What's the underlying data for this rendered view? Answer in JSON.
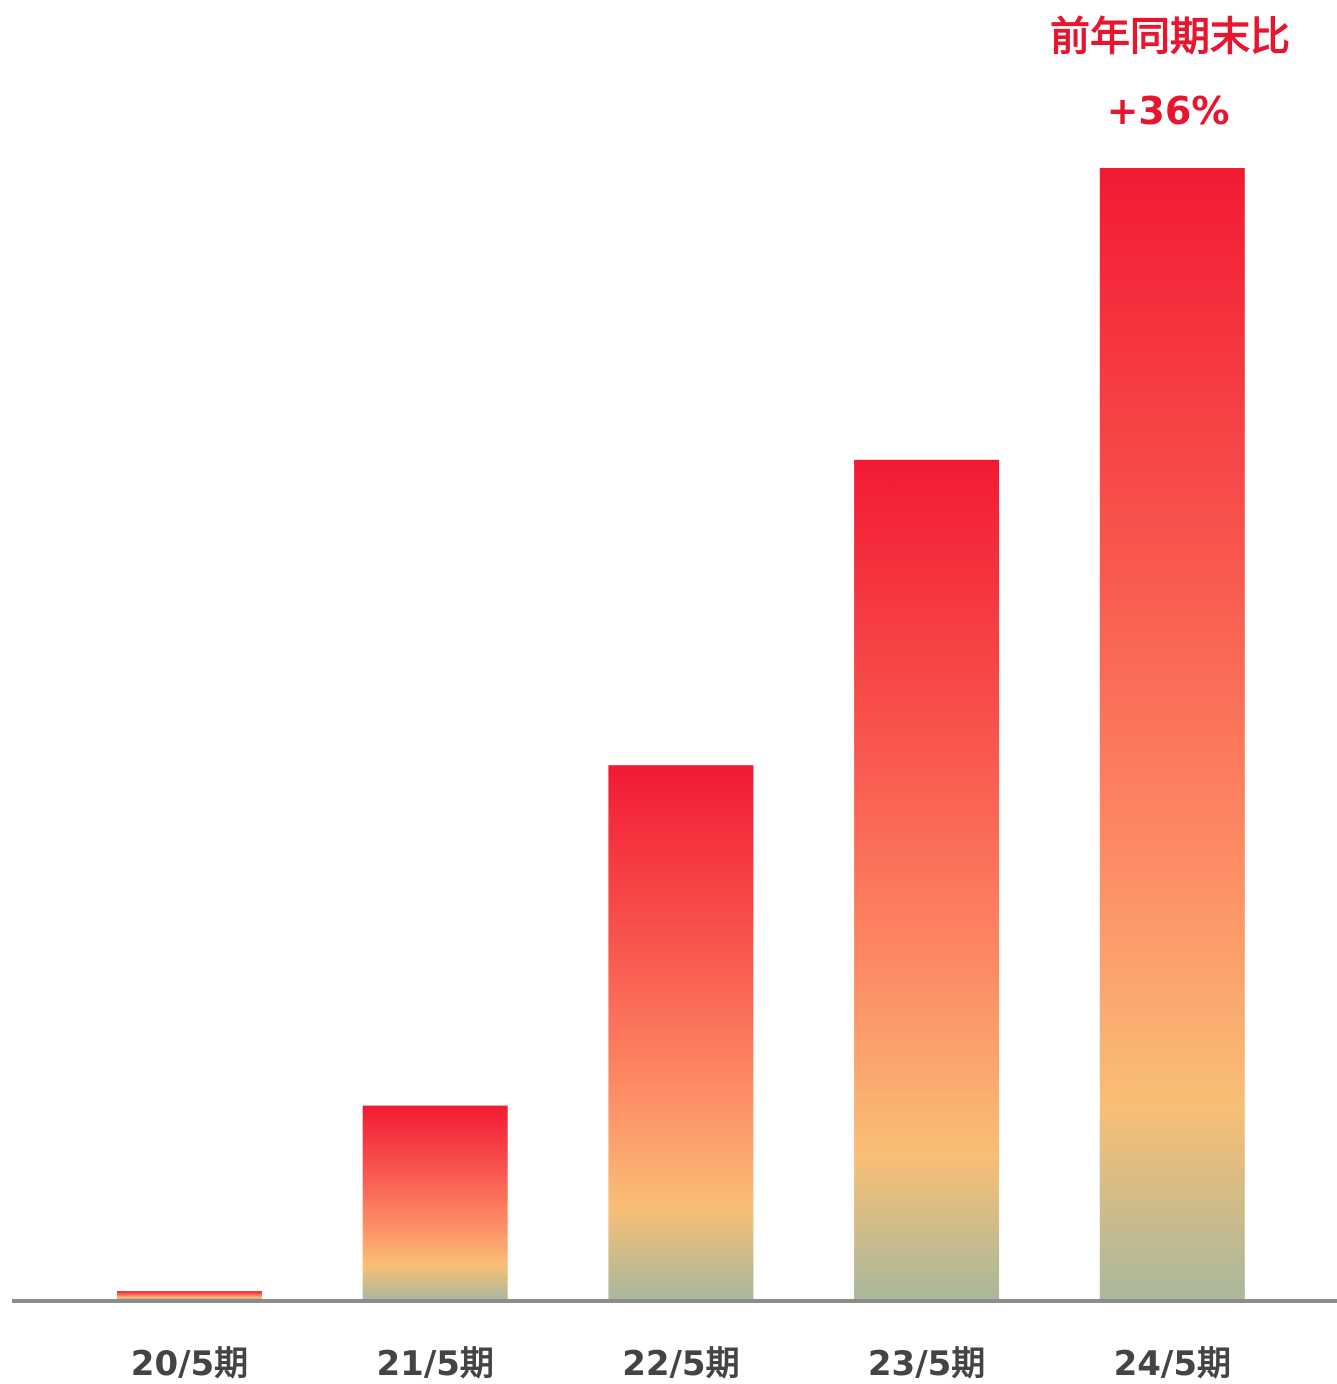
{
  "chart_data": {
    "type": "bar",
    "categories": [
      "20/5期",
      "21/5期",
      "22/5期",
      "23/5期",
      "24/5期"
    ],
    "values": [
      0.7,
      17.1,
      47.2,
      74.2,
      100
    ],
    "ylim": [
      0,
      100
    ],
    "grid": false,
    "annotation": {
      "category": "24/5期",
      "line1": "前年同期末比",
      "line2": "+36%"
    },
    "colors": {
      "bar_top": "#f21a33",
      "bar_mid1": "#f9584f",
      "bar_mid2": "#fd8e65",
      "bar_mid3": "#f8bf76",
      "bar_bottom": "#a9b89c",
      "axis": "#8c8c8c",
      "tick_text": "#444444",
      "annotation_text": "#e8152f"
    }
  }
}
